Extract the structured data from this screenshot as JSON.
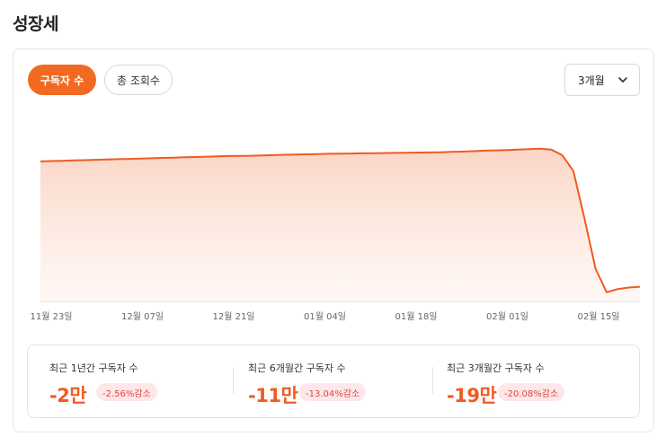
{
  "page": {
    "title": "성장세"
  },
  "tabs": [
    {
      "label": "구독자 수",
      "active": true
    },
    {
      "label": "총 조회수",
      "active": false
    }
  ],
  "range_select": {
    "value": "3개월",
    "icon": "chevron-down-icon"
  },
  "colors": {
    "accent": "#f26a21",
    "line": "#f15a22",
    "badge_bg": "#fde7ea",
    "badge_text": "#e0473c"
  },
  "chart_data": {
    "type": "area",
    "x_ticks": [
      "11월 23일",
      "12월 07일",
      "12월 21일",
      "01월 04일",
      "01월 18일",
      "02월 01일",
      "02월 15일"
    ],
    "y_unit_note": "",
    "values": [
      0.86,
      0.862,
      0.864,
      0.866,
      0.868,
      0.87,
      0.872,
      0.874,
      0.876,
      0.878,
      0.88,
      0.882,
      0.884,
      0.886,
      0.888,
      0.89,
      0.892,
      0.894,
      0.895,
      0.896,
      0.898,
      0.9,
      0.902,
      0.903,
      0.905,
      0.906,
      0.908,
      0.909,
      0.91,
      0.911,
      0.912,
      0.913,
      0.914,
      0.915,
      0.916,
      0.917,
      0.918,
      0.92,
      0.922,
      0.925,
      0.928,
      0.93,
      0.932,
      0.935,
      0.938,
      0.94,
      0.935,
      0.9,
      0.8,
      0.5,
      0.18,
      0.03,
      0.05,
      0.06,
      0.065
    ],
    "y_axis_shown": false,
    "grid": false,
    "legend": "none"
  },
  "summary": [
    {
      "label": "최근 1년간 구독자 수",
      "value": "-2만",
      "change": "-2.56%감소"
    },
    {
      "label": "최근 6개월간 구독자 수",
      "value": "-11만",
      "change": "-13.04%감소"
    },
    {
      "label": "최근 3개월간 구독자 수",
      "value": "-19만",
      "change": "-20.08%감소"
    }
  ]
}
